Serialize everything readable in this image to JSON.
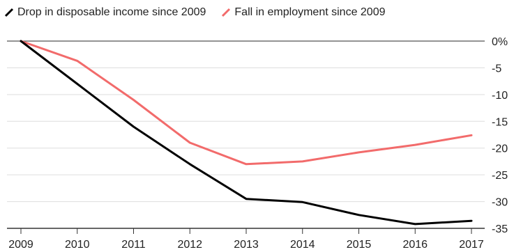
{
  "legend": [
    {
      "label": "Drop in disposable income since 2009",
      "color": "#000000"
    },
    {
      "label": "Fall in employment since 2009",
      "color": "#f26b6b"
    }
  ],
  "chart_data": {
    "type": "line",
    "x": [
      "2009",
      "2010",
      "2011",
      "2012",
      "2013",
      "2014",
      "2015",
      "2016",
      "2017"
    ],
    "series": [
      {
        "name": "Drop in disposable income since 2009",
        "color": "#000000",
        "values": [
          0,
          -8,
          -16,
          -23,
          -29.5,
          -30.1,
          -32.5,
          -34.2,
          -33.6
        ]
      },
      {
        "name": "Fall in employment since 2009",
        "color": "#f26b6b",
        "values": [
          0,
          -3.7,
          -11,
          -19,
          -23,
          -22.5,
          -20.8,
          -19.4,
          -17.6
        ]
      }
    ],
    "yticks": [
      "0%",
      "-5",
      "-10",
      "-15",
      "-20",
      "-25",
      "-30",
      "-35"
    ],
    "ylim": [
      -35,
      0
    ],
    "grid": true,
    "legend_position": "top-left"
  }
}
